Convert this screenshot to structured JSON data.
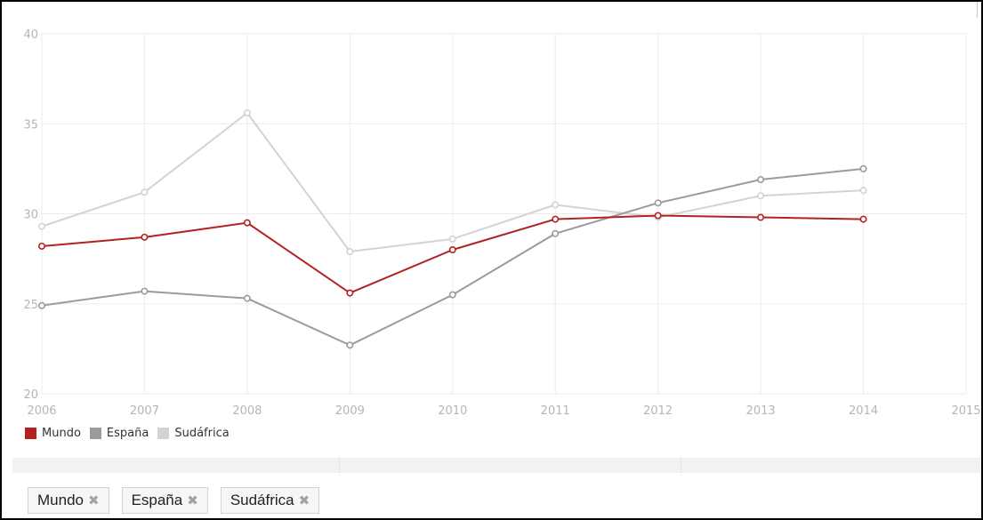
{
  "chart_data": {
    "type": "line",
    "x": [
      "2006",
      "2007",
      "2008",
      "2009",
      "2010",
      "2011",
      "2012",
      "2013",
      "2014"
    ],
    "xticks": [
      "2006",
      "2007",
      "2008",
      "2009",
      "2010",
      "2011",
      "2012",
      "2013",
      "2014",
      "2015"
    ],
    "yticks": [
      "20",
      "25",
      "30",
      "35",
      "40"
    ],
    "xlim": [
      2006,
      2015
    ],
    "ylim": [
      20,
      40
    ],
    "grid": true,
    "legend_position": "bottom-left",
    "series": [
      {
        "name": "Mundo",
        "color": "#b22222",
        "values": [
          28.2,
          28.7,
          29.5,
          25.6,
          28.0,
          29.7,
          29.9,
          29.8,
          29.7
        ]
      },
      {
        "name": "España",
        "color": "#9b9b9b",
        "values": [
          24.9,
          25.7,
          25.3,
          22.7,
          25.5,
          28.9,
          30.6,
          31.9,
          32.5
        ]
      },
      {
        "name": "Sudáfrica",
        "color": "#d3d3d3",
        "values": [
          29.3,
          31.2,
          35.6,
          27.9,
          28.6,
          30.5,
          29.8,
          31.0,
          31.3
        ]
      }
    ]
  },
  "legend": {
    "items": [
      {
        "label": "Mundo",
        "color": "#b22222"
      },
      {
        "label": "España",
        "color": "#9b9b9b"
      },
      {
        "label": "Sudáfrica",
        "color": "#d3d3d3"
      }
    ]
  },
  "filters": {
    "tags": [
      {
        "label": "Mundo",
        "remove_icon": "close-x-icon"
      },
      {
        "label": "España",
        "remove_icon": "close-x-icon"
      },
      {
        "label": "Sudáfrica",
        "remove_icon": "close-x-icon"
      }
    ]
  }
}
